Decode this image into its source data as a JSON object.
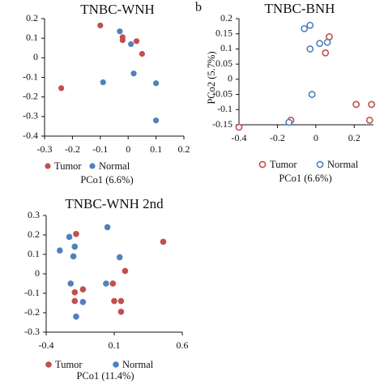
{
  "chart_data": [
    {
      "type": "scatter",
      "panel_label": "",
      "title": "TNBC-WNH",
      "xlabel": "PCo1 (6.6%)",
      "ylabel": "",
      "xlim": [
        -0.3,
        0.2
      ],
      "ylim": [
        -0.4,
        0.2
      ],
      "x_ticks": [
        -0.3,
        -0.2,
        -0.1,
        0,
        0.1,
        0.2
      ],
      "x_tick_labels": [
        "-0.3",
        "-0.2",
        "-0.1",
        "0",
        "0.1",
        "0.2"
      ],
      "y_ticks": [
        0.2,
        0.1,
        0,
        -0.1,
        -0.2,
        -0.3,
        -0.4
      ],
      "y_tick_labels": [
        "0.2",
        "0.1",
        "0",
        "-0.1",
        "-0.2",
        "-0.3",
        "-0.4"
      ],
      "x_axis_at_y": -0.4,
      "y_axis_at_x": -0.3,
      "marker_style": "filled",
      "legend_position": "bottom",
      "series": [
        {
          "name": "Tumor",
          "color": "#c0504d",
          "points": [
            {
              "x": -0.1,
              "y": 0.165
            },
            {
              "x": -0.02,
              "y": 0.105
            },
            {
              "x": -0.02,
              "y": 0.09
            },
            {
              "x": 0.03,
              "y": 0.085
            },
            {
              "x": 0.05,
              "y": 0.02
            },
            {
              "x": -0.24,
              "y": -0.155
            }
          ]
        },
        {
          "name": "Normal",
          "color": "#4f81bd",
          "points": [
            {
              "x": -0.03,
              "y": 0.135
            },
            {
              "x": 0.01,
              "y": 0.07
            },
            {
              "x": -0.09,
              "y": -0.125
            },
            {
              "x": 0.02,
              "y": -0.08
            },
            {
              "x": 0.1,
              "y": -0.13
            },
            {
              "x": 0.1,
              "y": -0.32
            }
          ]
        }
      ]
    },
    {
      "type": "scatter",
      "panel_label": "b",
      "title": "TNBC-BNH",
      "xlabel": "PCo1 (6.6%)",
      "ylabel": "PCo2 (5.7%)",
      "xlim": [
        -0.4,
        0.3
      ],
      "ylim": [
        -0.15,
        0.2
      ],
      "x_ticks": [
        -0.4,
        -0.2,
        0,
        0.2
      ],
      "x_tick_labels": [
        "-0.4",
        "-0.2",
        "0",
        "0.2"
      ],
      "y_ticks": [
        0.2,
        0.15,
        0.1,
        0.05,
        0,
        -0.05,
        -0.1,
        -0.15
      ],
      "y_tick_labels": [
        "0.2",
        "0.15",
        "0.1",
        "0.05",
        "0",
        "-0.05",
        "-0.1",
        "-0.15"
      ],
      "x_axis_at_y": -0.15,
      "y_axis_at_x": -0.4,
      "marker_style": "hollow",
      "legend_position": "bottom",
      "series": [
        {
          "name": "Tumor",
          "color": "#c0504d",
          "points": [
            {
              "x": -0.4,
              "y": -0.158
            },
            {
              "x": -0.13,
              "y": -0.135
            },
            {
              "x": 0.07,
              "y": 0.14
            },
            {
              "x": 0.05,
              "y": 0.087
            },
            {
              "x": 0.21,
              "y": -0.083
            },
            {
              "x": 0.29,
              "y": -0.083
            },
            {
              "x": 0.28,
              "y": -0.135
            }
          ]
        },
        {
          "name": "Normal",
          "color": "#4f81bd",
          "points": [
            {
              "x": -0.06,
              "y": 0.167
            },
            {
              "x": -0.03,
              "y": 0.178
            },
            {
              "x": 0.02,
              "y": 0.118
            },
            {
              "x": 0.06,
              "y": 0.122
            },
            {
              "x": -0.03,
              "y": 0.1
            },
            {
              "x": -0.02,
              "y": -0.05
            },
            {
              "x": -0.14,
              "y": -0.142
            }
          ]
        }
      ]
    },
    {
      "type": "scatter",
      "panel_label": "",
      "title": "TNBC-WNH 2nd",
      "xlabel": "PCo1 (11.4%)",
      "ylabel": "",
      "xlim": [
        -0.4,
        0.6
      ],
      "ylim": [
        -0.3,
        0.3
      ],
      "x_ticks": [
        -0.4,
        0.1,
        0.6
      ],
      "x_tick_labels": [
        "-0.4",
        "0.1",
        "0.6"
      ],
      "y_ticks": [
        0.3,
        0.2,
        0.1,
        0,
        -0.1,
        -0.2,
        -0.3
      ],
      "y_tick_labels": [
        "0.3",
        "0.2",
        "0.1",
        "0",
        "-0.1",
        "-0.2",
        "-0.3"
      ],
      "x_axis_at_y": -0.3,
      "y_axis_at_x": -0.4,
      "marker_style": "filled",
      "legend_position": "bottom",
      "series": [
        {
          "name": "Tumor",
          "color": "#c0504d",
          "points": [
            {
              "x": -0.18,
              "y": 0.205
            },
            {
              "x": 0.46,
              "y": 0.165
            },
            {
              "x": 0.18,
              "y": 0.015
            },
            {
              "x": 0.09,
              "y": -0.05
            },
            {
              "x": -0.13,
              "y": -0.08
            },
            {
              "x": -0.19,
              "y": -0.095
            },
            {
              "x": 0.1,
              "y": -0.14
            },
            {
              "x": 0.15,
              "y": -0.14
            },
            {
              "x": -0.19,
              "y": -0.14
            },
            {
              "x": 0.15,
              "y": -0.195
            }
          ]
        },
        {
          "name": "Normal",
          "color": "#4f81bd",
          "points": [
            {
              "x": 0.05,
              "y": 0.24
            },
            {
              "x": -0.23,
              "y": 0.19
            },
            {
              "x": -0.19,
              "y": 0.14
            },
            {
              "x": -0.3,
              "y": 0.12
            },
            {
              "x": -0.2,
              "y": 0.09
            },
            {
              "x": 0.14,
              "y": 0.085
            },
            {
              "x": -0.22,
              "y": -0.05
            },
            {
              "x": 0.04,
              "y": -0.05
            },
            {
              "x": -0.13,
              "y": -0.145
            },
            {
              "x": -0.18,
              "y": -0.22
            }
          ]
        }
      ]
    }
  ]
}
